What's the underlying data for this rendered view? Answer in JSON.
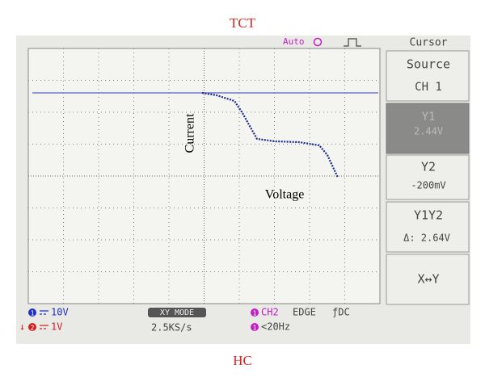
{
  "figure": {
    "top_label": "TCT",
    "bottom_label": "HC",
    "y_annotation": "Current",
    "x_annotation": "Voltage"
  },
  "screen": {
    "trigger_mode": "Auto",
    "menu": {
      "title": "Cursor",
      "items": [
        {
          "label": "Source",
          "value": "CH 1"
        },
        {
          "label": "Y1",
          "value": "2.44V"
        },
        {
          "label": "Y2",
          "value": "-200mV"
        },
        {
          "label": "Y1Y2",
          "value": "Δ: 2.64V"
        },
        {
          "label": "X↔Y"
        }
      ]
    },
    "status_bar": {
      "ch1_badge": "1",
      "ch1_scale": "10V",
      "ch2_marker": "↓",
      "ch2_badge": "2",
      "ch2_scale": "1V",
      "mode": "XY MODE",
      "sample_rate": "2.5KS/s",
      "trigger_badge": "1",
      "trigger_source": "CH2",
      "trigger_type": "EDGE",
      "coupling": "ƒDC",
      "filter_badge": "1",
      "filter": "<20Hz"
    }
  }
}
